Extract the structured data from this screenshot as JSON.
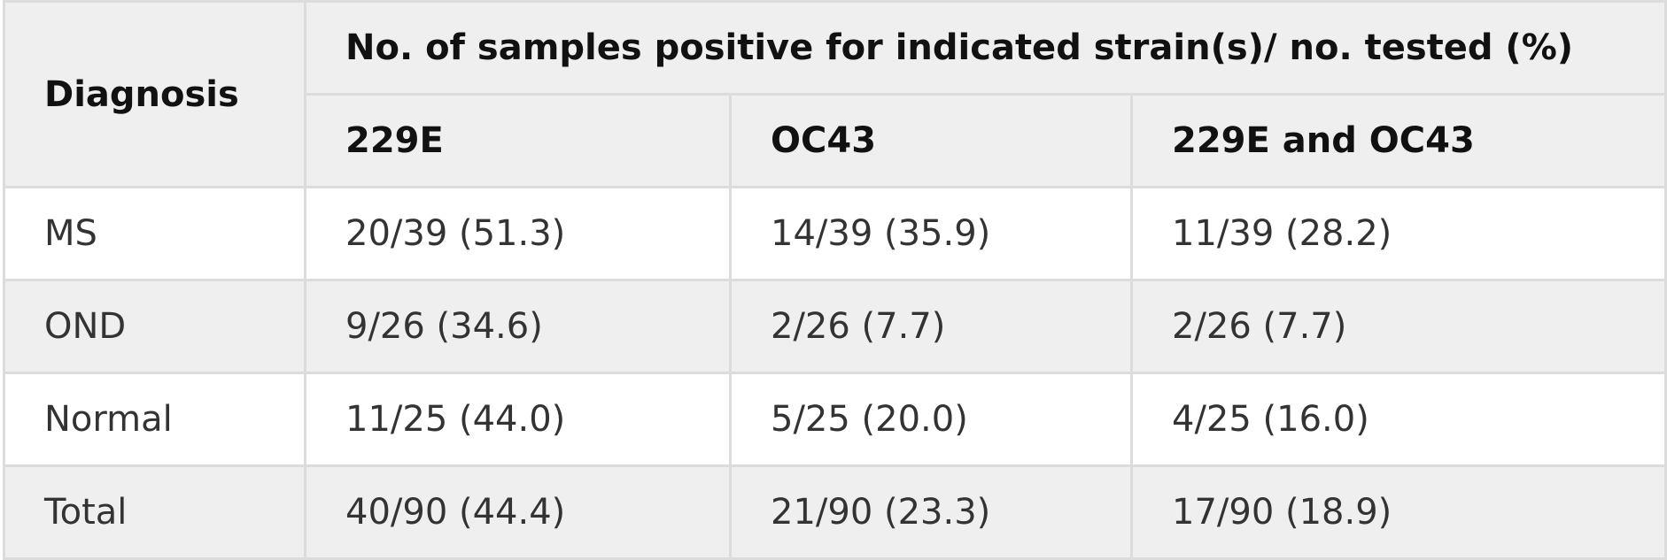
{
  "table": {
    "row_header_label": "Diagnosis",
    "group_header": "No. of samples positive for indicated strain(s)/ no. tested (%)",
    "columns": [
      "229E",
      "OC43",
      "229E and OC43"
    ],
    "rows": [
      {
        "diagnosis": "MS",
        "values": [
          "20/39 (51.3)",
          "14/39 (35.9)",
          "11/39 (28.2)"
        ]
      },
      {
        "diagnosis": "OND",
        "values": [
          "9/26 (34.6)",
          "2/26 (7.7)",
          "2/26 (7.7)"
        ]
      },
      {
        "diagnosis": "Normal",
        "values": [
          "11/25 (44.0)",
          "5/25 (20.0)",
          "4/25 (16.0)"
        ]
      },
      {
        "diagnosis": "Total",
        "values": [
          "40/90 (44.4)",
          "21/90 (23.3)",
          "17/90 (18.9)"
        ]
      }
    ]
  },
  "colors": {
    "shaded_row": "#efefef",
    "white_row": "#ffffff",
    "border": "#dcdcdc",
    "text": "#333333"
  }
}
